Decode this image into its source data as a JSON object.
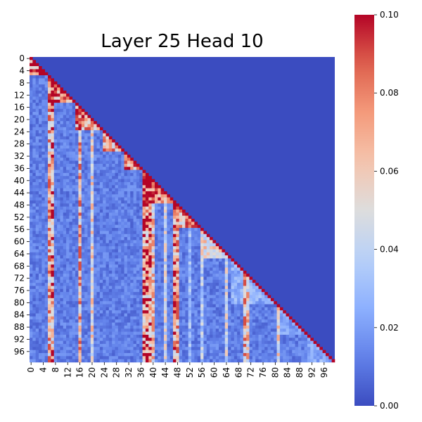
{
  "chart_data": {
    "type": "heatmap",
    "title": "Layer 25 Head 10",
    "n": 100,
    "x_tick_labels": [
      "0",
      "4",
      "8",
      "12",
      "16",
      "20",
      "24",
      "28",
      "32",
      "36",
      "40",
      "44",
      "48",
      "52",
      "56",
      "60",
      "64",
      "68",
      "72",
      "76",
      "80",
      "84",
      "88",
      "92",
      "96"
    ],
    "y_tick_labels": [
      "0",
      "4",
      "8",
      "12",
      "16",
      "20",
      "24",
      "28",
      "32",
      "36",
      "40",
      "44",
      "48",
      "52",
      "56",
      "60",
      "64",
      "68",
      "72",
      "76",
      "80",
      "84",
      "88",
      "92",
      "96"
    ],
    "tick_step": 4,
    "colorbar": {
      "colormap": "coolwarm",
      "vmin": 0.0,
      "vmax": 0.1,
      "tick_labels": [
        "0.00",
        "0.02",
        "0.04",
        "0.06",
        "0.08",
        "0.10"
      ]
    },
    "mask": "upper-triangle-zero",
    "blocks": [
      {
        "start": 0,
        "end": 6,
        "value": 0.1
      },
      {
        "start": 6,
        "end": 15,
        "value": 0.1
      },
      {
        "start": 15,
        "end": 24,
        "value": 0.09
      },
      {
        "start": 24,
        "end": 31,
        "value": 0.08
      },
      {
        "start": 31,
        "end": 37,
        "value": 0.1
      },
      {
        "start": 37,
        "end": 48,
        "value": 0.1
      },
      {
        "start": 48,
        "end": 56,
        "value": 0.08
      },
      {
        "start": 56,
        "end": 66,
        "value": 0.06
      },
      {
        "start": 66,
        "end": 81,
        "value": 0.03
      },
      {
        "start": 81,
        "end": 91,
        "value": 0.025
      },
      {
        "start": 91,
        "end": 100,
        "value": 0.03
      }
    ],
    "hot_columns": [
      {
        "col": 6,
        "value": 0.09
      },
      {
        "col": 7,
        "value": 0.1
      },
      {
        "col": 16,
        "value": 0.09
      },
      {
        "col": 20,
        "value": 0.07
      },
      {
        "col": 37,
        "value": 0.1
      },
      {
        "col": 38,
        "value": 0.1
      },
      {
        "col": 39,
        "value": 0.1
      },
      {
        "col": 40,
        "value": 0.08
      },
      {
        "col": 44,
        "value": 0.06
      },
      {
        "col": 47,
        "value": 0.1
      },
      {
        "col": 48,
        "value": 0.09
      },
      {
        "col": 52,
        "value": 0.04
      },
      {
        "col": 56,
        "value": 0.05
      },
      {
        "col": 64,
        "value": 0.06
      },
      {
        "col": 70,
        "value": 0.09
      },
      {
        "col": 71,
        "value": 0.08
      },
      {
        "col": 81,
        "value": 0.07
      }
    ],
    "background_value": 0.012,
    "diagonal_value": 0.1
  }
}
